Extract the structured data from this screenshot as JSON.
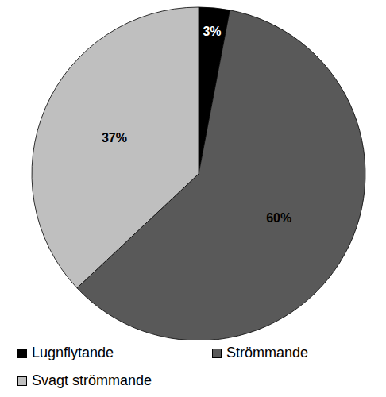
{
  "chart_data": {
    "type": "pie",
    "categories": [
      "Lugnflytande",
      "Strömmande",
      "Svagt strömmande"
    ],
    "values": [
      3,
      60,
      37
    ],
    "value_labels": [
      "3%",
      "60%",
      "37%"
    ],
    "colors": [
      "#000000",
      "#595959",
      "#bfbfbf"
    ],
    "data_labels": true,
    "legend": "bottom"
  }
}
